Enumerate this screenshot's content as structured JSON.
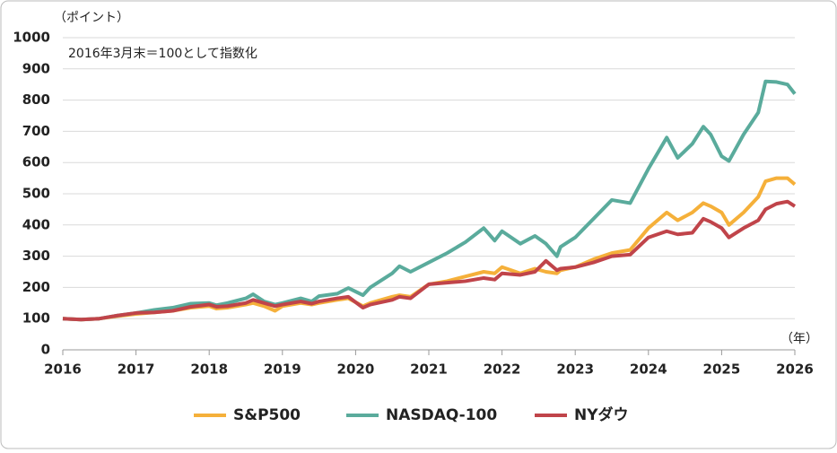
{
  "chart_data": {
    "type": "line",
    "y_label": "（ポイント）",
    "x_label": "（年）",
    "annotation": "2016年3月末＝100として指数化",
    "x": [
      2016.0,
      2016.25,
      2016.5,
      2016.75,
      2017.0,
      2017.25,
      2017.5,
      2017.75,
      2018.0,
      2018.1,
      2018.25,
      2018.5,
      2018.6,
      2018.75,
      2018.9,
      2019.0,
      2019.25,
      2019.4,
      2019.5,
      2019.75,
      2019.9,
      2020.1,
      2020.2,
      2020.5,
      2020.6,
      2020.75,
      2021.0,
      2021.25,
      2021.5,
      2021.75,
      2021.9,
      2022.0,
      2022.25,
      2022.45,
      2022.6,
      2022.75,
      2022.8,
      2023.0,
      2023.25,
      2023.5,
      2023.75,
      2024.0,
      2024.25,
      2024.4,
      2024.6,
      2024.75,
      2024.85,
      2025.0,
      2025.1,
      2025.3,
      2025.5,
      2025.6,
      2025.75,
      2025.9,
      2026.0
    ],
    "series": [
      {
        "name": "S&P500",
        "color": "#f5b03a",
        "values": [
          100,
          97,
          100,
          108,
          115,
          120,
          125,
          135,
          140,
          132,
          135,
          145,
          150,
          140,
          125,
          140,
          150,
          145,
          150,
          160,
          165,
          140,
          150,
          170,
          175,
          170,
          210,
          220,
          235,
          250,
          245,
          265,
          245,
          260,
          250,
          245,
          255,
          265,
          290,
          310,
          320,
          390,
          440,
          415,
          440,
          470,
          460,
          440,
          400,
          440,
          490,
          540,
          550,
          550,
          530
        ]
      },
      {
        "name": "NASDAQ-100",
        "color": "#5aab9c",
        "values": [
          100,
          97,
          100,
          110,
          118,
          128,
          135,
          148,
          150,
          143,
          150,
          165,
          178,
          155,
          145,
          150,
          165,
          155,
          172,
          180,
          198,
          175,
          200,
          245,
          268,
          250,
          280,
          310,
          345,
          390,
          350,
          380,
          340,
          365,
          340,
          300,
          330,
          360,
          420,
          480,
          470,
          580,
          680,
          615,
          660,
          715,
          690,
          620,
          605,
          690,
          760,
          860,
          858,
          850,
          820
        ]
      },
      {
        "name": "NYダウ",
        "color": "#c0444a",
        "values": [
          100,
          97,
          100,
          110,
          118,
          120,
          125,
          138,
          145,
          138,
          140,
          150,
          160,
          150,
          140,
          145,
          155,
          148,
          155,
          165,
          170,
          135,
          145,
          160,
          170,
          165,
          210,
          215,
          220,
          230,
          225,
          245,
          240,
          250,
          285,
          255,
          260,
          265,
          280,
          300,
          305,
          360,
          380,
          370,
          375,
          420,
          410,
          390,
          360,
          390,
          415,
          450,
          468,
          475,
          460
        ]
      }
    ],
    "xlim": [
      2016,
      2026
    ],
    "xticks": [
      2016,
      2017,
      2018,
      2019,
      2020,
      2021,
      2022,
      2023,
      2024,
      2025,
      2026
    ],
    "ylim": [
      0,
      1000
    ],
    "yticks": [
      0,
      100,
      200,
      300,
      400,
      500,
      600,
      700,
      800,
      900,
      1000
    ],
    "grid": true
  }
}
